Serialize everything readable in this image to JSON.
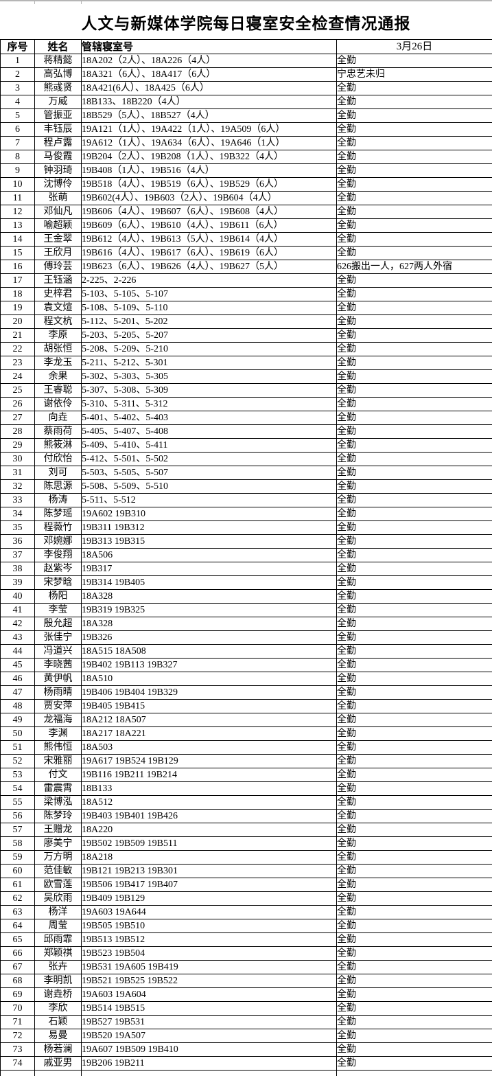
{
  "title": "人文与新媒体学院每日寝室安全检查情况通报",
  "table": {
    "headers": [
      "序号",
      "姓名",
      "管辖寝室号",
      "3月26日"
    ],
    "rows": [
      {
        "num": "1",
        "name": "蒋精懿",
        "rooms": "18A202（2人）、18A226（4人）",
        "status": "全勤"
      },
      {
        "num": "2",
        "name": "高弘博",
        "rooms": "18A321（6人）、18A417（6人）",
        "status": "宁忠艺未归"
      },
      {
        "num": "3",
        "name": "熊彧贤",
        "rooms": "18A421(6人）、18A425（6人）",
        "status": "全勤"
      },
      {
        "num": "4",
        "name": "万威",
        "rooms": "18B133、18B220（4人）",
        "status": "全勤"
      },
      {
        "num": "5",
        "name": "管振亚",
        "rooms": "18B529（5人）、18B527（4人）",
        "status": "全勤"
      },
      {
        "num": "6",
        "name": "丰钰辰",
        "rooms": "19A121（1人）、19A422（1人）、19A509（6人）",
        "status": "全勤"
      },
      {
        "num": "7",
        "name": "程卢露",
        "rooms": "19A612（1人）、19A634（6人）、19A646（1人）",
        "status": "全勤"
      },
      {
        "num": "8",
        "name": "马俊霞",
        "rooms": "19B204（2人）、19B208（1人）、19B322（4人）",
        "status": "全勤"
      },
      {
        "num": "9",
        "name": "钟羽琦",
        "rooms": "19B408（1人）、19B516（4人）",
        "status": "全勤"
      },
      {
        "num": "10",
        "name": "沈博伶",
        "rooms": "19B518（4人）、19B519（6人）、19B529（6人）",
        "status": "全勤"
      },
      {
        "num": "11",
        "name": "张萌",
        "rooms": "19B602(4人）、19B603（2人）、19B604（4人）",
        "status": "全勤"
      },
      {
        "num": "12",
        "name": "邓仙凡",
        "rooms": "19B606（4人）、19B607（6人）、19B608（4人）",
        "status": "全勤"
      },
      {
        "num": "13",
        "name": "喻超颖",
        "rooms": "19B609（6人）、19B610（4人）、19B611（6人）",
        "status": "全勤"
      },
      {
        "num": "14",
        "name": "王金翠",
        "rooms": "19B612（4人）、19B613（5人）、19B614（4人）",
        "status": "全勤"
      },
      {
        "num": "15",
        "name": "王欣月",
        "rooms": "19B616（4人）、19B617（6人）、19B619（6人）",
        "status": "全勤"
      },
      {
        "num": "16",
        "name": "傅玲芸",
        "rooms": "19B623（6人）、19B626（4人）、19B627（5人）",
        "status": "626搬出一人，627两人外宿"
      },
      {
        "num": "17",
        "name": "王钰涵",
        "rooms": "2-225、2-226",
        "status": "全勤"
      },
      {
        "num": "18",
        "name": "史梓君",
        "rooms": "5-103、5-105、5-107",
        "status": "全勤"
      },
      {
        "num": "19",
        "name": "袁文煊",
        "rooms": "5-108、5-109、5-110",
        "status": "全勤"
      },
      {
        "num": "20",
        "name": "程文杭",
        "rooms": "5-112、5-201、5-202",
        "status": "全勤"
      },
      {
        "num": "21",
        "name": "李原",
        "rooms": "5-203、5-205、5-207",
        "status": "全勤"
      },
      {
        "num": "22",
        "name": "胡张恒",
        "rooms": "5-208、5-209、5-210",
        "status": "全勤"
      },
      {
        "num": "23",
        "name": "李龙玉",
        "rooms": "5-211、5-212、5-301",
        "status": "全勤"
      },
      {
        "num": "24",
        "name": "余果",
        "rooms": "5-302、5-303、5-305",
        "status": "全勤"
      },
      {
        "num": "25",
        "name": "王睿聪",
        "rooms": "5-307、5-308、5-309",
        "status": "全勤"
      },
      {
        "num": "26",
        "name": "谢依伶",
        "rooms": "5-310、5-311、5-312",
        "status": "全勤"
      },
      {
        "num": "27",
        "name": "向垚",
        "rooms": "5-401、5-402、5-403",
        "status": "全勤"
      },
      {
        "num": "28",
        "name": "蔡雨荷",
        "rooms": "5-405、5-407、5-408",
        "status": "全勤"
      },
      {
        "num": "29",
        "name": "熊筱淋",
        "rooms": "5-409、5-410、5-411",
        "status": "全勤"
      },
      {
        "num": "30",
        "name": "付欣怡",
        "rooms": "5-412、5-501、5-502",
        "status": "全勤"
      },
      {
        "num": "31",
        "name": "刘可",
        "rooms": "5-503、5-505、5-507",
        "status": "全勤"
      },
      {
        "num": "32",
        "name": "陈思源",
        "rooms": "5-508、5-509、5-510",
        "status": "全勤"
      },
      {
        "num": "33",
        "name": "杨涛",
        "rooms": "5-511、5-512",
        "status": "全勤"
      },
      {
        "num": "34",
        "name": "陈梦瑶",
        "rooms": "19A602 19B310",
        "status": "全勤"
      },
      {
        "num": "35",
        "name": "程薇竹",
        "rooms": "19B311 19B312",
        "status": "全勤"
      },
      {
        "num": "36",
        "name": "邓婉娜",
        "rooms": "19B313 19B315",
        "status": "全勤"
      },
      {
        "num": "37",
        "name": "李俊翔",
        "rooms": "18A506",
        "status": "全勤"
      },
      {
        "num": "38",
        "name": "赵紫岑",
        "rooms": "19B317",
        "status": "全勤"
      },
      {
        "num": "39",
        "name": "宋梦晗",
        "rooms": "19B314 19B405",
        "status": "全勤"
      },
      {
        "num": "40",
        "name": "杨阳",
        "rooms": "18A328",
        "status": "全勤"
      },
      {
        "num": "41",
        "name": "李莹",
        "rooms": "19B319 19B325",
        "status": "全勤"
      },
      {
        "num": "42",
        "name": "殷允超",
        "rooms": "18A328",
        "status": "全勤"
      },
      {
        "num": "43",
        "name": "张佳宁",
        "rooms": "19B326",
        "status": "全勤"
      },
      {
        "num": "44",
        "name": "冯道兴",
        "rooms": "18A515 18A508",
        "status": "全勤"
      },
      {
        "num": "45",
        "name": "李晓茜",
        "rooms": "19B402 19B113 19B327",
        "status": "全勤"
      },
      {
        "num": "46",
        "name": "黄伊帆",
        "rooms": "18A510",
        "status": "全勤"
      },
      {
        "num": "47",
        "name": "杨雨晴",
        "rooms": "19B406 19B404 19B329",
        "status": "全勤"
      },
      {
        "num": "48",
        "name": "贾安萍",
        "rooms": "19B405 19B415",
        "status": "全勤"
      },
      {
        "num": "49",
        "name": "龙福海",
        "rooms": "18A212 18A507",
        "status": "全勤"
      },
      {
        "num": "50",
        "name": "李渊",
        "rooms": "18A217 18A221",
        "status": "全勤"
      },
      {
        "num": "51",
        "name": "熊伟恒",
        "rooms": "18A503",
        "status": "全勤"
      },
      {
        "num": "52",
        "name": "宋雅丽",
        "rooms": "19A617 19B524 19B129",
        "status": "全勤"
      },
      {
        "num": "53",
        "name": "付文",
        "rooms": "19B116 19B211 19B214",
        "status": "全勤"
      },
      {
        "num": "54",
        "name": "雷震霄",
        "rooms": "18B133",
        "status": "全勤"
      },
      {
        "num": "55",
        "name": "梁博泓",
        "rooms": "18A512",
        "status": "全勤"
      },
      {
        "num": "56",
        "name": "陈梦玲",
        "rooms": "19B403 19B401 19B426",
        "status": "全勤"
      },
      {
        "num": "57",
        "name": "王赠龙",
        "rooms": "18A220",
        "status": "全勤"
      },
      {
        "num": "58",
        "name": "廖美宁",
        "rooms": "19B502 19B509 19B511",
        "status": "全勤"
      },
      {
        "num": "59",
        "name": "万方明",
        "rooms": "18A218",
        "status": "全勤"
      },
      {
        "num": "60",
        "name": "范佳敏",
        "rooms": "19B121 19B213 19B301",
        "status": "全勤"
      },
      {
        "num": "61",
        "name": "欧雪莲",
        "rooms": "19B506 19B417 19B407",
        "status": "全勤"
      },
      {
        "num": "62",
        "name": "吴欣雨",
        "rooms": "19B409 19B129",
        "status": "全勤"
      },
      {
        "num": "63",
        "name": "杨洋",
        "rooms": "19A603 19A644",
        "status": "全勤"
      },
      {
        "num": "64",
        "name": "周莹",
        "rooms": "19B505 19B510",
        "status": "全勤"
      },
      {
        "num": "65",
        "name": "邱雨霏",
        "rooms": "19B513 19B512",
        "status": "全勤"
      },
      {
        "num": "66",
        "name": "郑颖祺",
        "rooms": "19B523 19B504",
        "status": "全勤"
      },
      {
        "num": "67",
        "name": "张卉",
        "rooms": "19B531 19A605 19B419",
        "status": "全勤"
      },
      {
        "num": "68",
        "name": "李明凯",
        "rooms": "19B521 19B525 19B522",
        "status": "全勤"
      },
      {
        "num": "69",
        "name": "谢垚桥",
        "rooms": "19A603 19A604",
        "status": "全勤"
      },
      {
        "num": "70",
        "name": "李欣",
        "rooms": "19B514 19B515",
        "status": "全勤"
      },
      {
        "num": "71",
        "name": "石颖",
        "rooms": "19B527 19B531",
        "status": "全勤"
      },
      {
        "num": "72",
        "name": "易曼",
        "rooms": "19B520 19A507",
        "status": "全勤"
      },
      {
        "num": "73",
        "name": "杨若澜",
        "rooms": "19A607 19B509 19B410",
        "status": "全勤"
      },
      {
        "num": "74",
        "name": "戚亚男",
        "rooms": "19B206 19B211",
        "status": "全勤"
      }
    ]
  }
}
